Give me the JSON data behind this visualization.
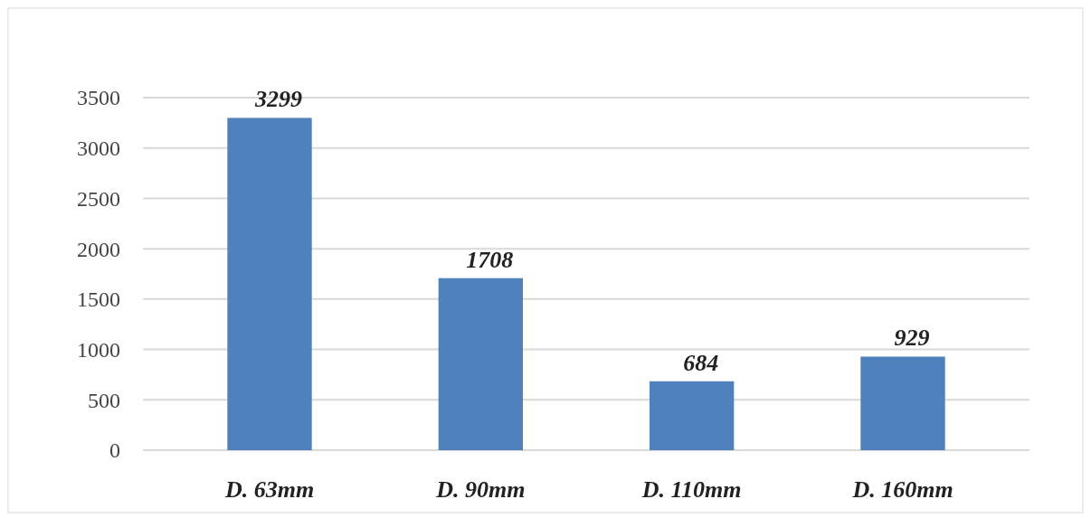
{
  "chart_data": {
    "type": "bar",
    "categories": [
      "D. 63mm",
      "D. 90mm",
      "D. 110mm",
      "D. 160mm"
    ],
    "values": [
      3299,
      1708,
      684,
      929
    ],
    "color": "#4f81bd",
    "ylim": [
      0,
      3500
    ],
    "yticks": [
      0,
      500,
      1000,
      1500,
      2000,
      2500,
      3000,
      3500
    ],
    "grid": "y",
    "data_labels": true
  }
}
